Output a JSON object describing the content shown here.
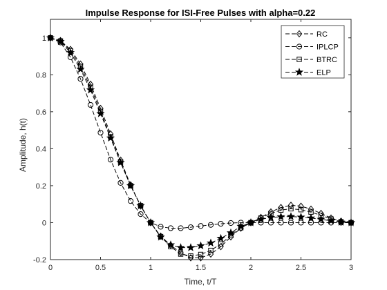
{
  "chart_data": {
    "type": "line",
    "title": "Impulse Response for ISI-Free Pulses with alpha=0.22",
    "xlabel": "Time, t/T",
    "ylabel": "Amplitude, h(t)",
    "xlim": [
      0,
      3
    ],
    "ylim": [
      -0.2,
      1.1
    ],
    "xticks": [
      0,
      0.5,
      1,
      1.5,
      2,
      2.5,
      3
    ],
    "xtick_labels": [
      "0",
      "0.5",
      "1",
      "1.5",
      "2",
      "2.5",
      "3"
    ],
    "yticks": [
      -0.2,
      0,
      0.2,
      0.4,
      0.6,
      0.8,
      1
    ],
    "ytick_labels": [
      "-0.2",
      "0",
      "0.2",
      "0.4",
      "0.6",
      "0.8",
      "1"
    ],
    "grid": false,
    "box": true,
    "legend_position": "top-right",
    "x": [
      0,
      0.1,
      0.2,
      0.3,
      0.4,
      0.5,
      0.6,
      0.7,
      0.8,
      0.9,
      1.0,
      1.1,
      1.2,
      1.3,
      1.4,
      1.5,
      1.6,
      1.7,
      1.8,
      1.9,
      2.0,
      2.1,
      2.2,
      2.3,
      2.4,
      2.5,
      2.6,
      2.7,
      2.8,
      2.9,
      3.0
    ],
    "series": [
      {
        "name": "RC",
        "marker": "diamond",
        "values": [
          1.0,
          0.985,
          0.937,
          0.858,
          0.749,
          0.618,
          0.48,
          0.338,
          0.204,
          0.09,
          0.0,
          -0.073,
          -0.122,
          -0.163,
          -0.19,
          -0.19,
          -0.17,
          -0.13,
          -0.077,
          -0.03,
          0.0,
          0.028,
          0.058,
          0.082,
          0.094,
          0.089,
          0.073,
          0.05,
          0.025,
          0.008,
          0.0
        ]
      },
      {
        "name": "IPLCP",
        "marker": "circle",
        "values": [
          1.0,
          0.975,
          0.895,
          0.778,
          0.637,
          0.487,
          0.341,
          0.215,
          0.117,
          0.046,
          0.0,
          -0.022,
          -0.03,
          -0.03,
          -0.025,
          -0.018,
          -0.012,
          -0.006,
          -0.002,
          0.0,
          0.0,
          0.0,
          0.0,
          0.0,
          0.0,
          0.0,
          0.0,
          0.0,
          0.0,
          0.0,
          0.0
        ]
      },
      {
        "name": "BTRC",
        "marker": "square",
        "values": [
          1.0,
          0.983,
          0.93,
          0.845,
          0.733,
          0.602,
          0.465,
          0.327,
          0.2,
          0.092,
          0.0,
          -0.075,
          -0.13,
          -0.17,
          -0.18,
          -0.172,
          -0.15,
          -0.115,
          -0.07,
          -0.028,
          0.0,
          0.025,
          0.05,
          0.068,
          0.075,
          0.07,
          0.057,
          0.04,
          0.02,
          0.005,
          0.0
        ]
      },
      {
        "name": "ELP",
        "marker": "star",
        "values": [
          1.0,
          0.98,
          0.92,
          0.83,
          0.718,
          0.59,
          0.458,
          0.325,
          0.2,
          0.092,
          0.0,
          -0.078,
          -0.12,
          -0.135,
          -0.135,
          -0.125,
          -0.11,
          -0.085,
          -0.055,
          -0.02,
          0.0,
          0.018,
          0.028,
          0.032,
          0.033,
          0.03,
          0.025,
          0.018,
          0.01,
          0.003,
          0.0
        ]
      }
    ],
    "colors": {
      "line": "#000000",
      "axis": "#262626",
      "background": "#ffffff"
    }
  }
}
